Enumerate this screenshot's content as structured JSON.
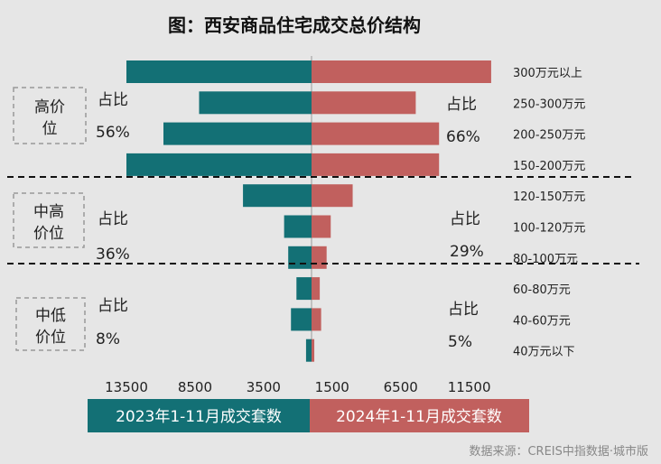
{
  "chart_data": {
    "type": "bar",
    "title": "图：西安商品住宅成交总价结构",
    "categories": [
      "300万元以上",
      "250-300万元",
      "200-250万元",
      "150-200万元",
      "120-150万元",
      "100-120万元",
      "80-100万元",
      "60-80万元",
      "40-60万元",
      "40万元以下"
    ],
    "series": [
      {
        "name": "2023年1-11月成交套数",
        "color": "#137075",
        "side": "left",
        "values": [
          13500,
          8200,
          10800,
          13500,
          5000,
          2000,
          1700,
          1100,
          1500,
          400
        ]
      },
      {
        "name": "2024年1-11月成交套数",
        "color": "#c1605e",
        "side": "right",
        "values": [
          13100,
          7600,
          9300,
          9300,
          3000,
          1400,
          1100,
          600,
          700,
          200
        ]
      }
    ],
    "left_ticks": [
      "13500",
      "8500",
      "3500"
    ],
    "right_ticks": [
      "1500",
      "6500",
      "11500"
    ],
    "axis_max": 13500,
    "tiers": [
      {
        "name_line1": "高价",
        "name_line2": "位",
        "share_label": "占比",
        "left_share": "56%",
        "right_share": "66%"
      },
      {
        "name_line1": "中高",
        "name_line2": "价位",
        "share_label": "占比",
        "left_share": "36%",
        "right_share": "29%"
      },
      {
        "name_line1": "中低",
        "name_line2": "价位",
        "share_label": "占比",
        "left_share": "8%",
        "right_share": "5%"
      }
    ],
    "source": "数据来源：CREIS中指数据·城市版"
  }
}
